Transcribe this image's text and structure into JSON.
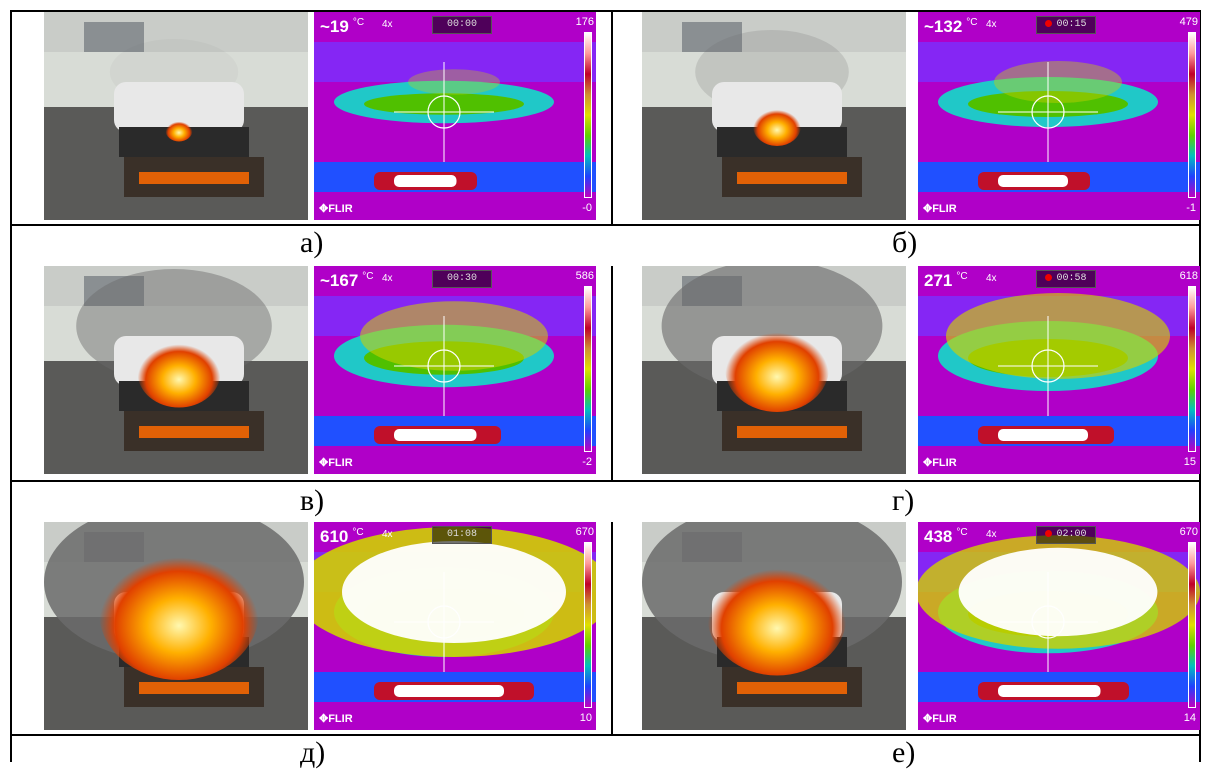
{
  "panels": [
    {
      "caption": "а)",
      "temp": "~19",
      "unit": "°C",
      "zoom": "4x",
      "timer": "00:00",
      "rec": false,
      "scale_max": "176",
      "scale_min": "-0",
      "brand": "FLIR",
      "fire_level": 0.05
    },
    {
      "caption": "б)",
      "temp": "~132",
      "unit": "°C",
      "zoom": "4x",
      "timer": "00:15",
      "rec": true,
      "scale_max": "479",
      "scale_min": "-1",
      "brand": "FLIR",
      "fire_level": 0.2
    },
    {
      "caption": "в)",
      "temp": "~167",
      "unit": "°C",
      "zoom": "4x",
      "timer": "00:30",
      "rec": false,
      "scale_max": "586",
      "scale_min": "-2",
      "brand": "FLIR",
      "fire_level": 0.45
    },
    {
      "caption": "г)",
      "temp": "271",
      "unit": "°C",
      "zoom": "4x",
      "timer": "00:58",
      "rec": true,
      "scale_max": "618",
      "scale_min": "15",
      "brand": "FLIR",
      "fire_level": 0.6
    },
    {
      "caption": "д)",
      "temp": "610",
      "unit": "°C",
      "zoom": "4x",
      "timer": "01:08",
      "rec": false,
      "scale_max": "670",
      "scale_min": "10",
      "brand": "FLIR",
      "fire_level": 1.0
    },
    {
      "caption": "е)",
      "temp": "438",
      "unit": "°C",
      "zoom": "4x",
      "timer": "02:00",
      "rec": true,
      "scale_max": "670",
      "scale_min": "14",
      "brand": "FLIR",
      "fire_level": 0.85
    }
  ]
}
